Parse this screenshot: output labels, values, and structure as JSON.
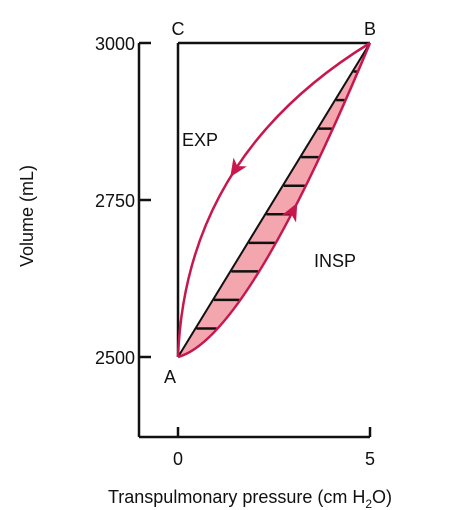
{
  "chart_data": {
    "type": "line",
    "title": "",
    "xlabel": "Transpulmonary pressure (cm H",
    "xlabel_sub": "2",
    "xlabel_end": "O)",
    "ylabel": "Volume (mL)",
    "xlim": [
      0,
      5
    ],
    "ylim": [
      2500,
      3000
    ],
    "xticks": [
      "0",
      "5"
    ],
    "yticks": [
      "2500",
      "2750",
      "3000"
    ],
    "points": [
      {
        "label": "A",
        "x": 0,
        "y": 2500
      },
      {
        "label": "B",
        "x": 5,
        "y": 3000
      },
      {
        "label": "C",
        "x": 0,
        "y": 3000
      }
    ],
    "series": [
      {
        "name": "EXP",
        "direction": "B to A"
      },
      {
        "name": "INSP",
        "direction": "A to B"
      }
    ],
    "grid": false,
    "colors": {
      "curve": "#c8174d",
      "fill": "#f3a6ad",
      "axes": "#111111",
      "hatch": "#111111"
    }
  }
}
